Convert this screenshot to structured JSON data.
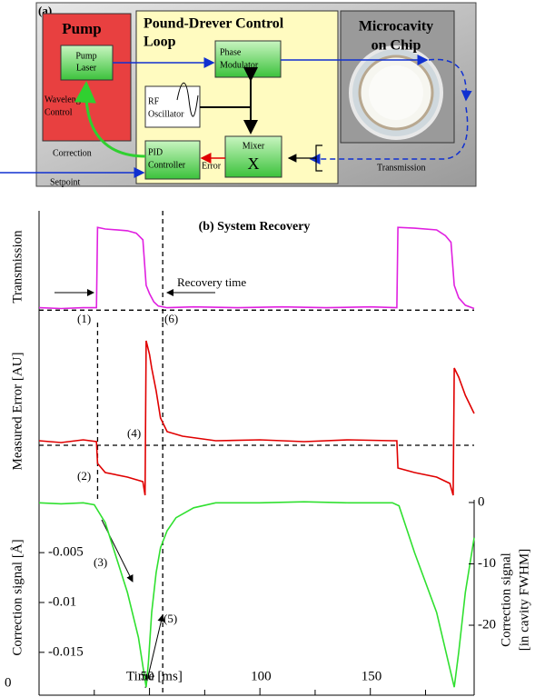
{
  "diagram": {
    "panel_label": "(a)",
    "pump": {
      "title": "Pump",
      "laser": [
        "Pump",
        "Laser"
      ],
      "wavelength_control": [
        "Wavelength",
        "Control"
      ],
      "correction": "Correction",
      "setpoint": "Setpoint"
    },
    "control_loop": {
      "title": [
        "Pound-Drever Control",
        "Loop"
      ],
      "phase_modulator": [
        "Phase",
        "Modulator"
      ],
      "rf_oscillator": [
        "RF",
        "Oscillator"
      ],
      "pid_controller": [
        "PID",
        "Controller"
      ],
      "error": "Error",
      "mixer": "Mixer",
      "mixer_symbol": "X"
    },
    "microcavity": {
      "title": [
        "Microcavity",
        "on Chip"
      ],
      "transmission": "Transmission"
    }
  },
  "chart_data": [
    {
      "type": "line",
      "title": "(b) System Recovery",
      "ylabel": "Transmission",
      "x": [
        0,
        10,
        20,
        26,
        26.5,
        30,
        40,
        44,
        47,
        48.5,
        50,
        52,
        54,
        58,
        70,
        90,
        110,
        130,
        150,
        162,
        162.5,
        170,
        180,
        184,
        186.5,
        188,
        190,
        193,
        197
      ],
      "values": [
        0.03,
        0.02,
        0.03,
        0.03,
        1.0,
        0.98,
        0.96,
        0.93,
        0.85,
        0.3,
        0.2,
        0.1,
        0.05,
        0.03,
        0.04,
        0.03,
        0.04,
        0.03,
        0.04,
        0.03,
        1.0,
        0.99,
        0.97,
        0.9,
        0.82,
        0.3,
        0.15,
        0.06,
        0.02
      ],
      "color": "#e020e0",
      "xlim": [
        0,
        197
      ],
      "ylim": [
        -0.15,
        1.2
      ],
      "hline": 0,
      "vlines": [
        56
      ],
      "annotations": [
        "(1)",
        "(6)",
        "Recovery time"
      ]
    },
    {
      "type": "line",
      "ylabel": "Measured Error [AU]",
      "x": [
        0,
        10,
        20,
        26,
        26.5,
        30,
        40,
        47,
        48,
        48.5,
        50,
        51,
        53,
        55,
        58,
        65,
        80,
        100,
        120,
        140,
        160,
        162,
        162.5,
        170,
        180,
        186,
        187.5,
        188,
        190,
        193,
        197
      ],
      "values": [
        0.05,
        0.03,
        0.06,
        0.04,
        -0.2,
        -0.3,
        -0.35,
        -0.4,
        -0.55,
        1.15,
        1.0,
        0.85,
        0.6,
        0.3,
        0.15,
        0.1,
        0.05,
        0.06,
        0.04,
        0.06,
        0.05,
        0.05,
        -0.25,
        -0.3,
        -0.35,
        -0.42,
        -0.55,
        0.85,
        0.75,
        0.55,
        0.35
      ],
      "color": "#e00000",
      "xlim": [
        0,
        197
      ],
      "ylim": [
        -0.6,
        1.35
      ],
      "hline": 0,
      "vlines": [
        26.5,
        56
      ],
      "annotations": [
        "(2)",
        "(4)"
      ]
    },
    {
      "type": "line",
      "ylabel": "Correction signal [Å]",
      "y2label": [
        "Correction signal",
        "[in cavity FWHM]"
      ],
      "xlabel": "Time",
      "x": [
        0,
        10,
        20,
        25,
        30,
        35,
        40,
        45,
        48.5,
        49.5,
        51,
        53,
        55,
        58,
        62,
        70,
        80,
        100,
        120,
        140,
        160,
        163,
        170,
        180,
        188,
        190,
        193,
        197
      ],
      "values": [
        0,
        -0.0001,
        0,
        -0.0002,
        -0.002,
        -0.0055,
        -0.009,
        -0.0135,
        -0.0185,
        -0.016,
        -0.011,
        -0.007,
        -0.0045,
        -0.0028,
        -0.0015,
        -0.0005,
        0,
        0,
        0.0001,
        0,
        0,
        -0.0003,
        -0.005,
        -0.011,
        -0.0185,
        -0.015,
        -0.009,
        -0.0035
      ],
      "color": "#30e030",
      "xlim": [
        0,
        197
      ],
      "xticks": [
        {
          "value": 0,
          "label": "0"
        },
        {
          "value": 50,
          "label": "50 [ms]"
        },
        100,
        150
      ],
      "xminorticks": [
        25,
        75,
        125,
        175
      ],
      "ylim": [
        -0.0193,
        0.0003
      ],
      "yticks": [
        -0.015,
        -0.01,
        -0.005
      ],
      "y2lim": [
        -31.4,
        0.44
      ],
      "y2ticks": [
        0,
        -10,
        -20
      ],
      "vlines": [
        56
      ],
      "annotations": [
        "(3)",
        "(5)"
      ]
    }
  ]
}
